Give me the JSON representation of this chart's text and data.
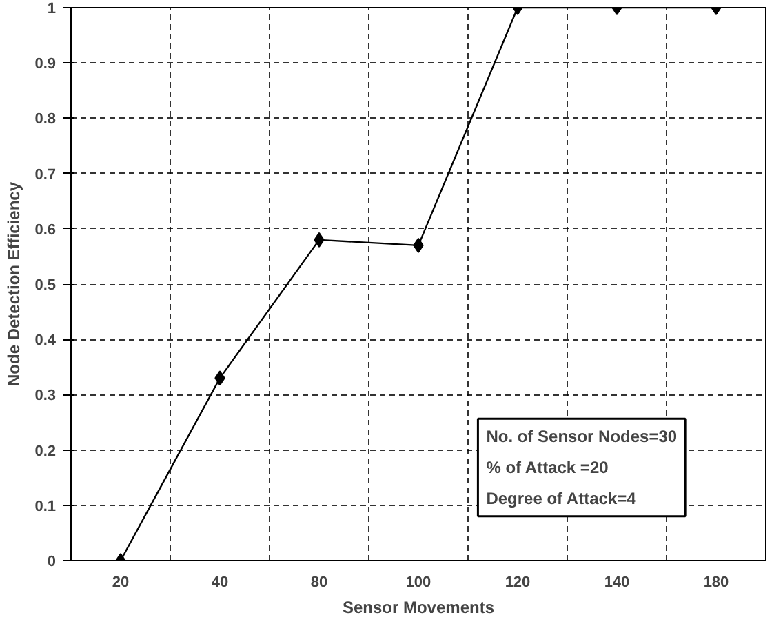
{
  "chart_data": {
    "type": "line",
    "xlabel": "Sensor Movements",
    "ylabel": "Node Detection Efficiency",
    "categories": [
      "20",
      "40",
      "80",
      "100",
      "120",
      "140",
      "180"
    ],
    "series": [
      {
        "color": "#000000",
        "values": [
          0,
          0.33,
          0.58,
          0.57,
          1,
          1,
          1
        ]
      }
    ],
    "ylim": [
      0,
      1
    ],
    "yticks": [
      0,
      0.1,
      0.2,
      0.3,
      0.4,
      0.5,
      0.6,
      0.7,
      0.8,
      0.9,
      1
    ],
    "grid": true,
    "marker": "diamond",
    "line_style": "solid",
    "annotations": [
      "No. of Sensor Nodes=30",
      "% of Attack =20",
      "Degree of Attack=4"
    ]
  }
}
